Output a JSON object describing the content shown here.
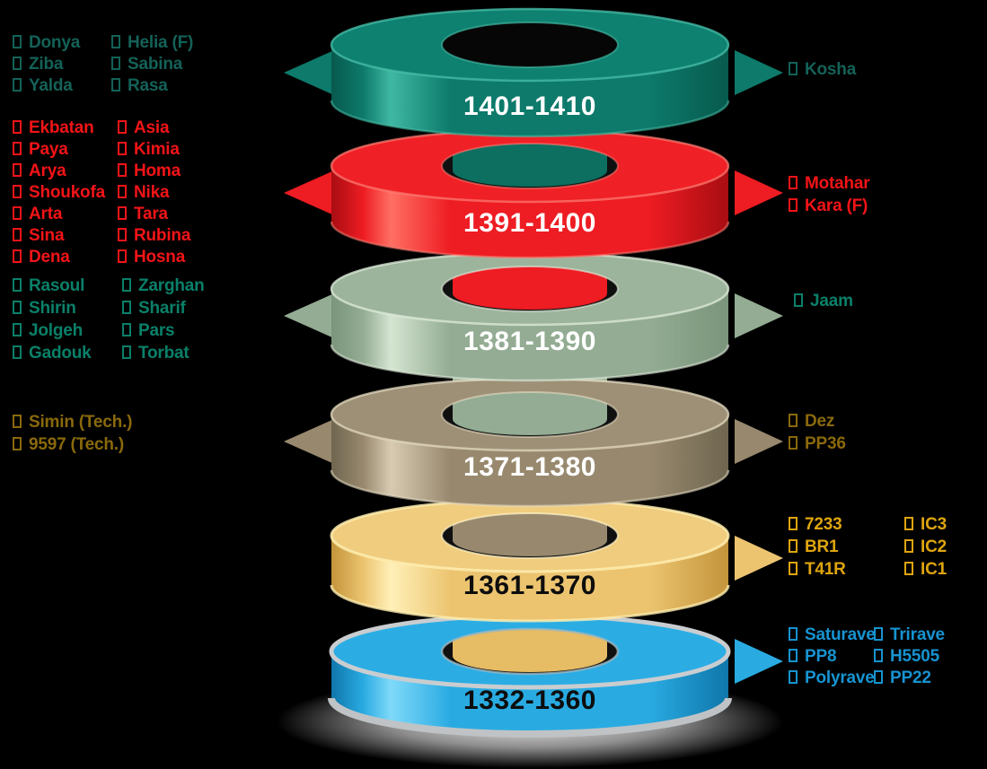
{
  "diagram": {
    "background_color": "#000000",
    "rings": [
      {
        "label": "1401-1410",
        "body_color": "#0D7A6B",
        "label_color": "#FFFFFF"
      },
      {
        "label": "1391-1400",
        "body_color": "#EE1C23",
        "label_color": "#FFFFFF"
      },
      {
        "label": "1381-1390",
        "body_color": "#93AC93",
        "label_color": "#FFFFFF"
      },
      {
        "label": "1371-1380",
        "body_color": "#98896E",
        "label_color": "#FFFFFF"
      },
      {
        "label": "1361-1370",
        "body_color": "#ECC470",
        "label_color": "#0D0D0D"
      },
      {
        "label": "1332-1360",
        "body_color": "#29ABE2",
        "label_color": "#0D0D0D"
      }
    ],
    "left_groups": [
      {
        "ring": "1401-1410",
        "text_color": "#136258",
        "columns": [
          [
            "Donya",
            "Ziba",
            "Yalda"
          ],
          [
            "Helia (F)",
            "Sabina",
            "Rasa"
          ]
        ]
      },
      {
        "ring": "1391-1400",
        "text_color": "#F31417",
        "columns": [
          [
            "Ekbatan",
            "Paya",
            "Arya",
            "Shoukofa",
            "Arta",
            "Sina",
            "Dena"
          ],
          [
            "Asia",
            "Kimia",
            "Homa",
            "Nika",
            "Tara",
            "Rubina",
            "Hosna"
          ]
        ]
      },
      {
        "ring": "1381-1390",
        "text_color": "#0A8069",
        "columns": [
          [
            "Rasoul",
            "Shirin",
            "Jolgeh",
            "Gadouk"
          ],
          [
            "Zarghan",
            "Sharif",
            "Pars",
            "Torbat"
          ]
        ]
      },
      {
        "ring": "1371-1380",
        "text_color": "#8A690B",
        "columns": [
          [
            "Simin (Tech.)",
            "9597 (Tech.)"
          ]
        ]
      }
    ],
    "right_groups": [
      {
        "ring": "1401-1410",
        "text_color": "#136258",
        "columns": [
          [
            "Kosha"
          ]
        ]
      },
      {
        "ring": "1391-1400",
        "text_color": "#F31417",
        "columns": [
          [
            "Motahar",
            "Kara (F)"
          ]
        ]
      },
      {
        "ring": "1381-1390",
        "text_color": "#0A8069",
        "columns": [
          [
            "Jaam"
          ]
        ]
      },
      {
        "ring": "1371-1380",
        "text_color": "#8A690B",
        "columns": [
          [
            "Dez",
            "PP36"
          ]
        ]
      },
      {
        "ring": "1361-1370",
        "text_color": "#DFA50F",
        "columns": [
          [
            "7233",
            "BR1",
            "T41R"
          ],
          [
            "IC3",
            "IC2",
            "IC1"
          ]
        ]
      },
      {
        "ring": "1332-1360",
        "text_color": "#1793D0",
        "columns": [
          [
            "Saturave",
            "PP8",
            "Polyrave"
          ],
          [
            "Trirave",
            "H5505",
            "PP22"
          ]
        ]
      }
    ]
  }
}
